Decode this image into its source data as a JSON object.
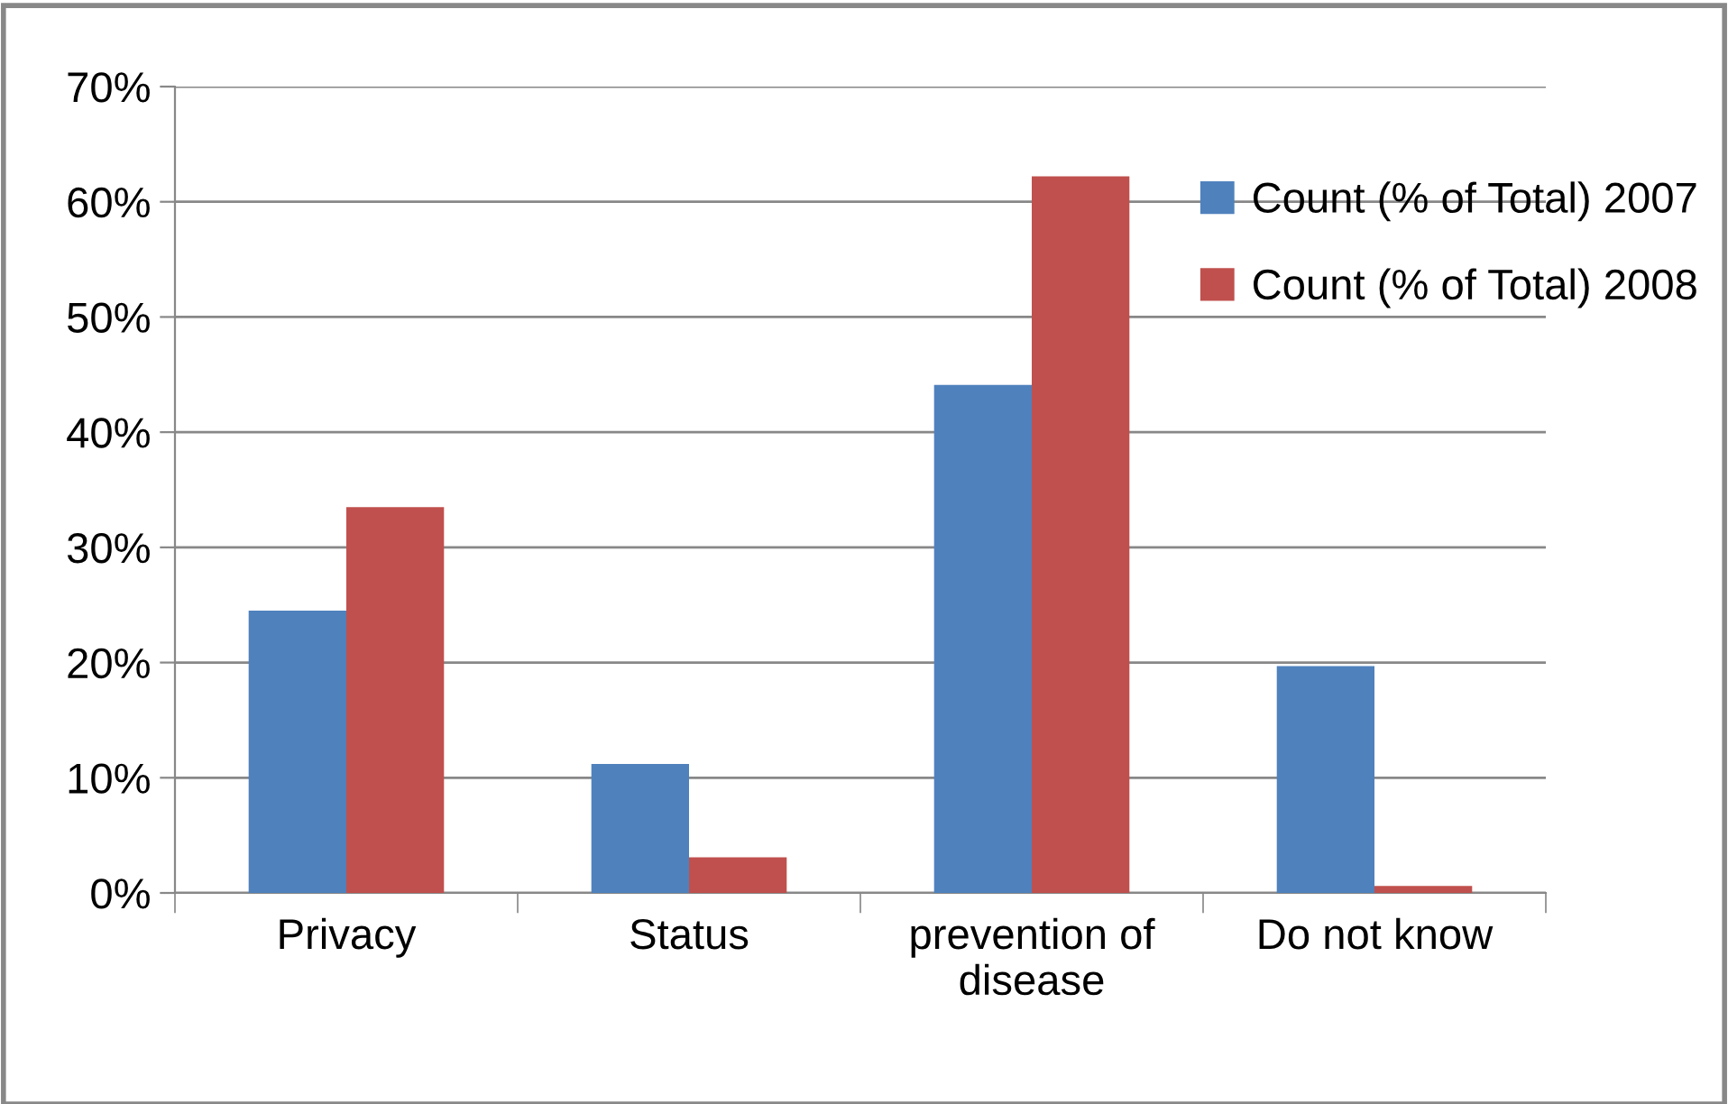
{
  "chart_data": {
    "type": "bar",
    "categories": [
      "Privacy",
      "Status",
      "prevention of\ndisease",
      "Do not know"
    ],
    "series": [
      {
        "name": "Count (% of Total) 2007",
        "color": "#4f81bd",
        "values": [
          24.5,
          11.2,
          44.1,
          19.7
        ]
      },
      {
        "name": "Count (% of Total) 2008",
        "color": "#c0504d",
        "values": [
          33.5,
          3.1,
          62.2,
          0.6
        ]
      }
    ],
    "ylim": [
      0,
      70
    ],
    "yticks": [
      {
        "value": 0,
        "label": "0%"
      },
      {
        "value": 10,
        "label": "10%"
      },
      {
        "value": 20,
        "label": "20%"
      },
      {
        "value": 30,
        "label": "30%"
      },
      {
        "value": 40,
        "label": "40%"
      },
      {
        "value": 50,
        "label": "50%"
      },
      {
        "value": 60,
        "label": "60%"
      },
      {
        "value": 70,
        "label": "70%"
      }
    ],
    "grid": "y",
    "legend": "top right"
  }
}
